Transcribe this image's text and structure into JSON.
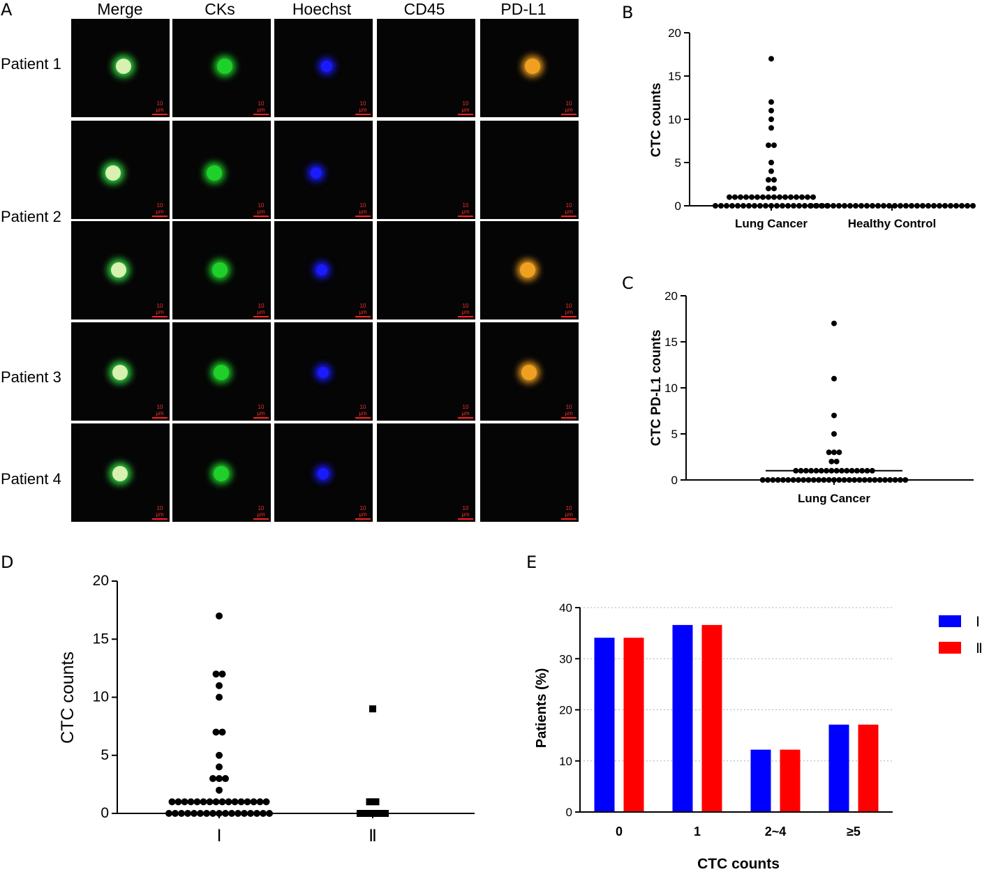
{
  "panel_letters": {
    "a": "A",
    "b": "B",
    "c": "C",
    "d": "D",
    "e": "E"
  },
  "microscopy": {
    "columns": [
      "Merge",
      "CKs",
      "Hoechst",
      "CD45",
      "PD-L1"
    ],
    "rows": [
      "Patient 1",
      "Patient 2",
      "Patient 3",
      "Patient 4"
    ],
    "scale_bar": "10 μm",
    "colors": {
      "merge": "#d8f0b0",
      "cks": "#1fcf2a",
      "hoechst": "#1a1aff",
      "pdl1": "#f0a020",
      "scale": "#ff2020"
    }
  },
  "chart_data": [
    {
      "id": "B",
      "type": "scatter",
      "title": "",
      "xlabel": "",
      "ylabel": "CTC counts",
      "categories": [
        "Lung Cancer",
        "Healthy Control"
      ],
      "ylim": [
        0,
        20
      ],
      "yticks": [
        0,
        5,
        10,
        15,
        20
      ],
      "medians": [
        1,
        0
      ],
      "series": [
        {
          "category": "Lung Cancer",
          "values": [
            17,
            12,
            11,
            10,
            9,
            7,
            7,
            5,
            4,
            3,
            3,
            2,
            2,
            1,
            1,
            1,
            1,
            1,
            1,
            1,
            1,
            1,
            1,
            1,
            1,
            1,
            1,
            1,
            1,
            0,
            0,
            0,
            0,
            0,
            0,
            0,
            0,
            0,
            0,
            0,
            0,
            0,
            0,
            0,
            0,
            0,
            0,
            0,
            0,
            0
          ]
        },
        {
          "category": "Healthy Control",
          "values": [
            0,
            0,
            0,
            0,
            0,
            0,
            0,
            0,
            0,
            0,
            0,
            0,
            0,
            0,
            0,
            0,
            0,
            0,
            0,
            0,
            0,
            0,
            0,
            0,
            0,
            0,
            0,
            0,
            0,
            0
          ]
        }
      ]
    },
    {
      "id": "C",
      "type": "scatter",
      "title": "",
      "xlabel": "",
      "ylabel": "CTC PD-L1 counts",
      "categories": [
        "Lung Cancer"
      ],
      "ylim": [
        0,
        20
      ],
      "yticks": [
        0,
        5,
        10,
        15,
        20
      ],
      "medians": [
        1
      ],
      "series": [
        {
          "category": "Lung Cancer",
          "values": [
            17,
            11,
            7,
            5,
            3,
            3,
            3,
            2,
            2,
            1,
            1,
            1,
            1,
            1,
            1,
            1,
            1,
            1,
            1,
            1,
            1,
            1,
            1,
            1,
            1,
            0,
            0,
            0,
            0,
            0,
            0,
            0,
            0,
            0,
            0,
            0,
            0,
            0,
            0,
            0,
            0,
            0,
            0,
            0,
            0,
            0,
            0,
            0,
            0,
            0,
            0,
            0,
            0,
            0
          ]
        }
      ]
    },
    {
      "id": "D",
      "type": "scatter",
      "title": "",
      "xlabel": "",
      "ylabel": "CTC counts",
      "categories": [
        "Ⅰ",
        "Ⅱ"
      ],
      "ylim": [
        0,
        20
      ],
      "yticks": [
        0,
        5,
        10,
        15,
        20
      ],
      "series": [
        {
          "category": "Ⅰ",
          "marker": "circle",
          "values": [
            17,
            12,
            12,
            11,
            10,
            7,
            7,
            5,
            4,
            3,
            3,
            3,
            2,
            1,
            1,
            1,
            1,
            1,
            1,
            1,
            1,
            1,
            1,
            1,
            1,
            1,
            1,
            1,
            1,
            0,
            0,
            0,
            0,
            0,
            0,
            0,
            0,
            0,
            0,
            0,
            0,
            0,
            0,
            0,
            0,
            0
          ]
        },
        {
          "category": "Ⅱ",
          "marker": "square",
          "values": [
            9,
            1,
            1,
            0,
            0,
            0,
            0,
            0
          ]
        }
      ]
    },
    {
      "id": "E",
      "type": "bar",
      "title": "",
      "xlabel": "CTC counts",
      "ylabel": "Patients (%)",
      "categories": [
        "0",
        "1",
        "2~4",
        "≥5"
      ],
      "ylim": [
        0,
        40
      ],
      "yticks": [
        0,
        10,
        20,
        30,
        40
      ],
      "grid": true,
      "legend_position": "right",
      "series": [
        {
          "name": "Ⅰ",
          "color": "#0000ff",
          "values": [
            34.1,
            36.6,
            12.2,
            17.1
          ]
        },
        {
          "name": "Ⅱ",
          "color": "#ff0000",
          "values": [
            34.1,
            36.6,
            12.2,
            17.1
          ]
        }
      ]
    }
  ]
}
